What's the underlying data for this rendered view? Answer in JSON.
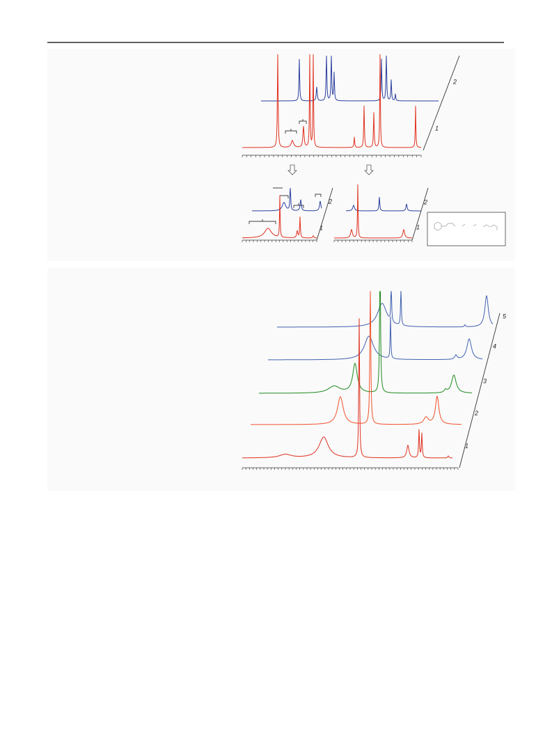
{
  "figure1": {
    "top_labels": [
      "2",
      "1"
    ],
    "left_labels": [
      "2",
      "1"
    ],
    "right_labels": [
      "2",
      "1"
    ]
  },
  "figure2": {
    "labels": [
      "5",
      "4",
      "3",
      "2",
      "1"
    ]
  }
}
